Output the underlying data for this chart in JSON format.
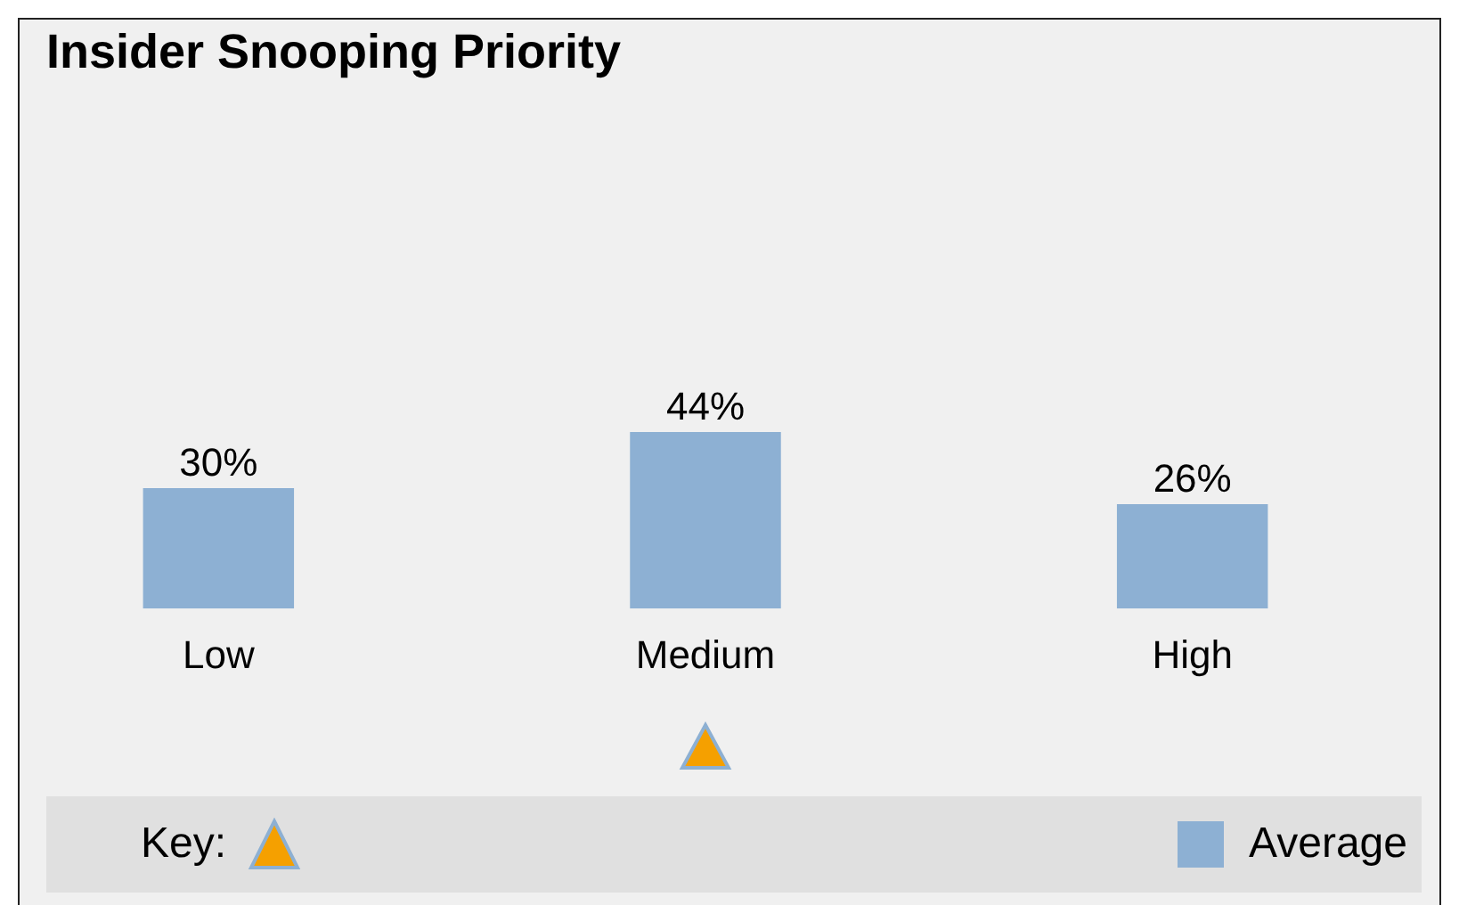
{
  "chart_data": {
    "type": "bar",
    "title": "Insider Snooping Priority",
    "categories": [
      "Low",
      "Medium",
      "High"
    ],
    "series": [
      {
        "name": "Average",
        "color": "#8db0d3",
        "values": [
          30,
          44,
          26
        ],
        "value_labels": [
          "30%",
          "44%",
          "26%"
        ]
      }
    ],
    "tick_labels": "x",
    "grid": false,
    "legend": "bottom",
    "annotations": [
      "Key:"
    ]
  }
}
